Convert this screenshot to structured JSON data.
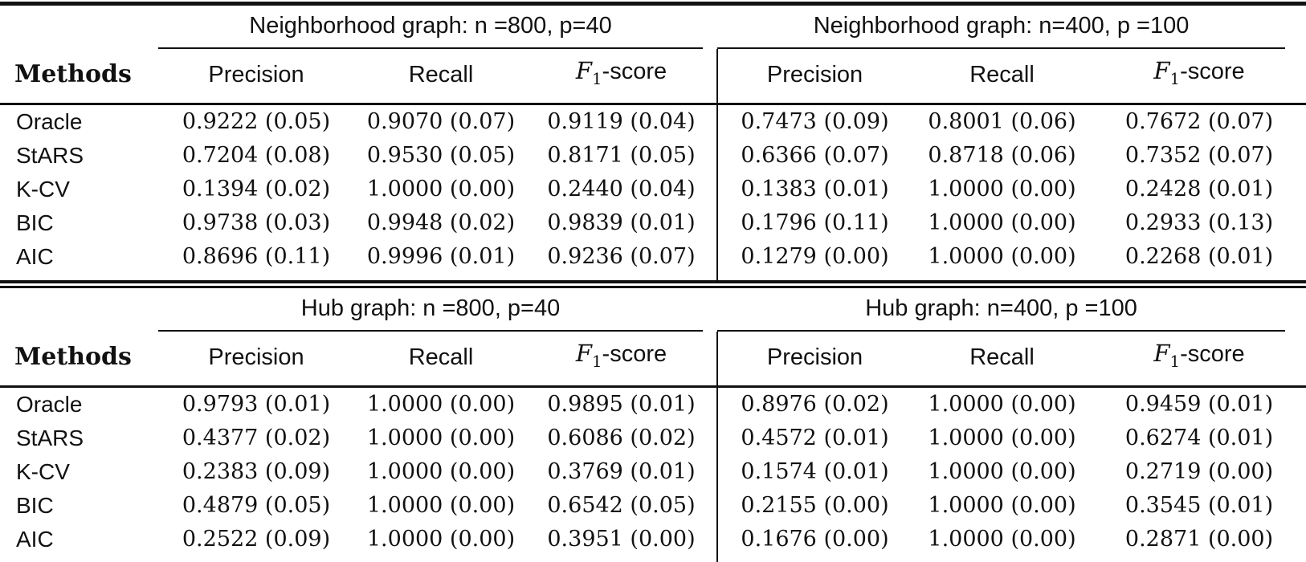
{
  "table": {
    "methods_label": "Methods",
    "f1_header": {
      "letter": "F",
      "sub": "1",
      "rest": "-score"
    },
    "panels": [
      {
        "left_title": "Neighborhood graph: n =800, p=40",
        "right_title": "Neighborhood graph: n=400, p =100",
        "precision_label": "Precision",
        "recall_label": "Recall",
        "rows": [
          {
            "method": "Oracle",
            "cells": [
              "0.9222 (0.05)",
              "0.9070 (0.07)",
              "0.9119 (0.04)",
              "0.7473 (0.09)",
              "0.8001 (0.06)",
              "0.7672 (0.07)"
            ]
          },
          {
            "method": "StARS",
            "cells": [
              "0.7204 (0.08)",
              "0.9530 (0.05)",
              "0.8171 (0.05)",
              "0.6366 (0.07)",
              "0.8718 (0.06)",
              "0.7352 (0.07)"
            ]
          },
          {
            "method": "K-CV",
            "cells": [
              "0.1394 (0.02)",
              "1.0000 (0.00)",
              "0.2440 (0.04)",
              "0.1383 (0.01)",
              "1.0000 (0.00)",
              "0.2428 (0.01)"
            ]
          },
          {
            "method": "BIC",
            "cells": [
              "0.9738 (0.03)",
              "0.9948 (0.02)",
              "0.9839 (0.01)",
              "0.1796 (0.11)",
              "1.0000 (0.00)",
              "0.2933 (0.13)"
            ]
          },
          {
            "method": "AIC",
            "cells": [
              "0.8696 (0.11)",
              "0.9996 (0.01)",
              "0.9236 (0.07)",
              "0.1279 (0.00)",
              "1.0000 (0.00)",
              "0.2268 (0.01)"
            ]
          }
        ]
      },
      {
        "left_title": "Hub graph: n =800, p=40",
        "right_title": "Hub graph: n=400, p =100",
        "precision_label": "Precision",
        "recall_label": "Recall",
        "rows": [
          {
            "method": "Oracle",
            "cells": [
              "0.9793 (0.01)",
              "1.0000 (0.00)",
              "0.9895 (0.01)",
              "0.8976 (0.02)",
              "1.0000 (0.00)",
              "0.9459 (0.01)"
            ]
          },
          {
            "method": "StARS",
            "cells": [
              "0.4377 (0.02)",
              "1.0000 (0.00)",
              "0.6086 (0.02)",
              "0.4572 (0.01)",
              "1.0000 (0.00)",
              "0.6274 (0.01)"
            ]
          },
          {
            "method": "K-CV",
            "cells": [
              "0.2383 (0.09)",
              "1.0000 (0.00)",
              "0.3769 (0.01)",
              "0.1574 (0.01)",
              "1.0000 (0.00)",
              "0.2719 (0.00)"
            ]
          },
          {
            "method": "BIC",
            "cells": [
              "0.4879 (0.05)",
              "1.0000 (0.00)",
              "0.6542 (0.05)",
              "0.2155 (0.00)",
              "1.0000 (0.00)",
              "0.3545 (0.01)"
            ]
          },
          {
            "method": "AIC",
            "cells": [
              "0.2522 (0.09)",
              "1.0000 (0.00)",
              "0.3951 (0.00)",
              "0.1676 (0.00)",
              "1.0000 (0.00)",
              "0.2871 (0.00)"
            ]
          }
        ]
      }
    ]
  }
}
